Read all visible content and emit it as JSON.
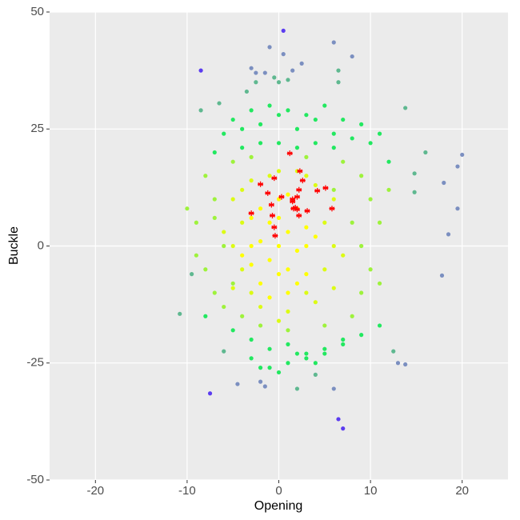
{
  "chart_data": {
    "type": "scatter",
    "x_label": "Opening",
    "y_label": "Buckle",
    "xlim": [
      -25,
      25
    ],
    "ylim": [
      -50,
      50
    ],
    "xticks": [
      -20,
      -10,
      0,
      10,
      20
    ],
    "yticks": [
      -50,
      -25,
      0,
      25,
      50
    ],
    "grid": true,
    "series": [
      {
        "color": "#22e860",
        "marker": "dot",
        "x": [
          -5,
          -3,
          -1,
          1,
          3,
          5,
          7,
          9,
          -6,
          -4,
          -2,
          0,
          2,
          4,
          6,
          8,
          10,
          11,
          -4,
          -2,
          0,
          2,
          4,
          6,
          -3,
          -1,
          1,
          3,
          5,
          7,
          -5,
          -3,
          -1,
          1,
          3,
          5,
          7,
          9,
          -2,
          0,
          2,
          4,
          -7,
          12,
          -8,
          11
        ],
        "values": [
          27,
          29,
          30,
          29,
          28,
          30,
          27,
          26,
          24,
          25,
          26,
          28,
          25,
          27,
          24,
          23,
          22,
          24,
          21,
          22,
          22,
          21,
          22,
          21,
          -20,
          -22,
          -21,
          -23,
          -22,
          -20,
          -18,
          -24,
          -26,
          -25,
          -24,
          -23,
          -21,
          -19,
          -26,
          -27,
          -23,
          -25,
          20,
          18,
          -15,
          -17
        ]
      },
      {
        "color": "#9ef23c",
        "marker": "dot",
        "x": [
          -8,
          -7,
          -9,
          -6,
          -8,
          -7,
          -5,
          -4,
          9,
          10,
          11,
          9,
          10,
          9,
          8,
          7,
          -6,
          12,
          -9,
          11,
          -3,
          3,
          5,
          -2,
          1,
          -7,
          8,
          -5,
          6,
          -10
        ],
        "values": [
          15,
          10,
          5,
          0,
          -5,
          -10,
          18,
          -15,
          15,
          10,
          5,
          0,
          -5,
          -10,
          -15,
          18,
          -13,
          12,
          -2,
          -8,
          19,
          19,
          -17,
          -17,
          -18,
          6,
          5,
          -8,
          12,
          8
        ]
      },
      {
        "color": "#dcfb14",
        "marker": "dot",
        "x": [
          -5,
          -4,
          -5,
          -4,
          -5,
          6,
          5,
          6,
          5,
          6,
          -3,
          0,
          3,
          -2,
          1,
          4,
          -4,
          4,
          -3,
          3,
          -6,
          7,
          0,
          2,
          -1
        ],
        "values": [
          10,
          5,
          0,
          -5,
          -9,
          10,
          5,
          0,
          -5,
          -9,
          14,
          16,
          15,
          -13,
          -14,
          -12,
          12,
          13,
          -10,
          -10,
          3,
          -2,
          -16,
          16,
          15
        ]
      },
      {
        "color": "#ffff00",
        "marker": "dot",
        "x": [
          0,
          1,
          -1,
          2,
          -2,
          0,
          0,
          3,
          -3,
          2,
          -2,
          2,
          -2,
          1,
          -1,
          3,
          -3,
          1,
          -1,
          4,
          -4,
          0,
          3,
          -3,
          1
        ],
        "values": [
          0,
          3,
          -3,
          -1,
          1,
          6,
          -6,
          4,
          -4,
          8,
          8,
          -8,
          -8,
          11,
          -11,
          0,
          0,
          -5,
          5,
          2,
          -2,
          10,
          -6,
          6,
          -10
        ]
      },
      {
        "color": "#5fb890",
        "marker": "dot",
        "x": [
          -0.5,
          0,
          1,
          6.5,
          6.5,
          -2.5,
          -3.5,
          -6.5,
          -8.5,
          13.8,
          16,
          14.8,
          14.8,
          -10.8,
          -9.5,
          12.5,
          -6,
          4,
          2
        ],
        "values": [
          36,
          35,
          35.5,
          37.5,
          35,
          35,
          33,
          30.5,
          29,
          29.5,
          20,
          15.5,
          11.5,
          -14.5,
          -6,
          -22.5,
          -22.5,
          -27.5,
          -30.5
        ]
      },
      {
        "color": "#7b8fc0",
        "marker": "dot",
        "x": [
          -1,
          0.5,
          6,
          8,
          2.5,
          -3,
          -2.5,
          -1.5,
          1.5,
          -4.5,
          -2,
          -1.5,
          20,
          19.5,
          18,
          19.5,
          18.5,
          17.8,
          13,
          13.8,
          6
        ],
        "values": [
          42.5,
          41,
          43.5,
          40.5,
          39,
          38,
          37,
          37,
          37.5,
          -29.5,
          -29,
          -30,
          19.5,
          17,
          13.5,
          8,
          2.5,
          -6.3,
          -25,
          -25.3,
          -30.5
        ]
      },
      {
        "color": "#5b3cf0",
        "marker": "dot",
        "x": [
          0.5,
          -8.5,
          -7.5,
          6.5,
          7
        ],
        "values": [
          46,
          37.5,
          -31.5,
          -37,
          -39
        ]
      },
      {
        "color": "#ff0000",
        "marker": "star",
        "x": [
          1.2,
          -2,
          -0.5,
          2.3,
          2.6,
          -1.2,
          0.3,
          2.2,
          4.2,
          5.1,
          1.5,
          2,
          -0.8,
          1.6,
          1.8,
          2,
          3.1,
          5.8,
          -3,
          -0.7,
          2.2,
          -0.5,
          -0.4,
          1.5
        ],
        "values": [
          19.8,
          13.2,
          14.5,
          16,
          14,
          11.3,
          10.5,
          12,
          11.8,
          12.4,
          10,
          10.5,
          8.8,
          8,
          8.2,
          7.8,
          7.5,
          8,
          7,
          6.5,
          6.5,
          4,
          2.2,
          9.5
        ]
      }
    ]
  }
}
